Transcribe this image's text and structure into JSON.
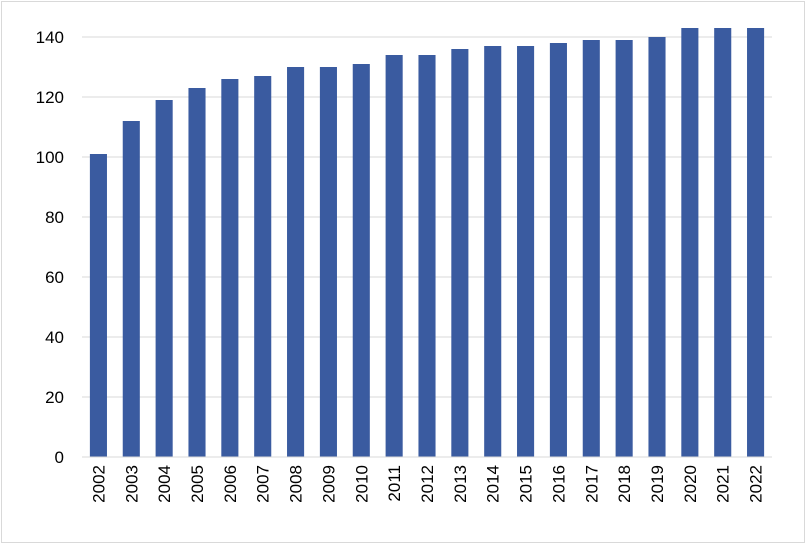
{
  "chart_data": {
    "type": "bar",
    "categories": [
      "2002",
      "2003",
      "2004",
      "2005",
      "2006",
      "2007",
      "2008",
      "2009",
      "2010",
      "2011",
      "2012",
      "2013",
      "2014",
      "2015",
      "2016",
      "2017",
      "2018",
      "2019",
      "2020",
      "2021",
      "2022"
    ],
    "values": [
      101,
      112,
      119,
      123,
      126,
      127,
      130,
      130,
      131,
      134,
      134,
      136,
      137,
      137,
      138,
      139,
      139,
      140,
      143,
      143,
      143
    ],
    "title": "",
    "xlabel": "",
    "ylabel": "",
    "ylim": [
      0,
      150
    ],
    "yticks": [
      0,
      20,
      40,
      60,
      80,
      100,
      120,
      140
    ],
    "grid": true,
    "legend": "none",
    "bar_color": "#3a5ba0",
    "grid_color": "#d9d9d9"
  }
}
